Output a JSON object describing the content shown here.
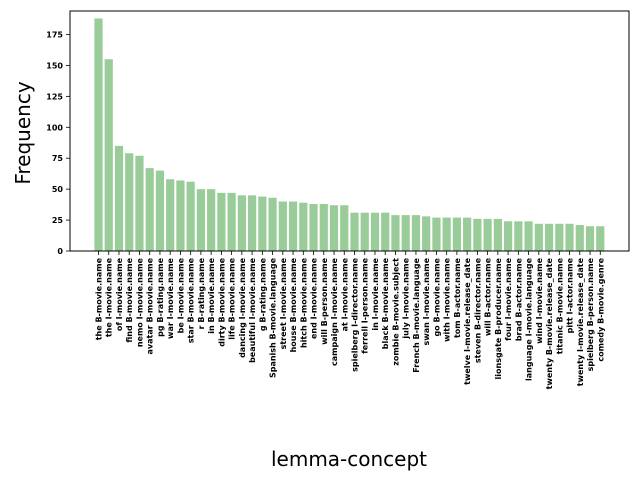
{
  "chart_data": {
    "type": "bar",
    "xlabel": "lemma-concept",
    "ylabel": "Frequency",
    "ylim": [
      0,
      194
    ],
    "yticks": [
      0,
      25,
      50,
      75,
      100,
      125,
      150,
      175
    ],
    "bar_color": "#99cc99",
    "grid": false,
    "categories": [
      "the B-movie.name",
      "the I-movie.name",
      "of I-movie.name",
      "find B-movie.name",
      "nemo I-movie.name",
      "avatar B-movie.name",
      "pg B-rating.name",
      "war I-movie.name",
      "be I-movie.name",
      "star B-movie.name",
      "r B-rating.name",
      "in B-movie.name",
      "dirty B-movie.name",
      "life B-movie.name",
      "dancing I-movie.name",
      "beautiful I-movie.name",
      "g B-rating.name",
      "Spanish B-movie.language",
      "street I-movie.name",
      "house B-movie.name",
      "hitch B-movie.name",
      "end I-movie.name",
      "will B-person.name",
      "campaign I-movie.name",
      "at I-movie.name",
      "spielberg I-director.name",
      "ferrell I-person.name",
      "in I-movie.name",
      "black B-movie.name",
      "zombie B-movie.subject",
      "july I-movie.name",
      "French B-movie.language",
      "swan I-movie.name",
      "go B-movie.name",
      "with I-movie.name",
      "tom B-actor.name",
      "twelve I-movie.release_date",
      "steven B-director.name",
      "will B-actor.name",
      "lionsgate B-producer.name",
      "four I-movie.name",
      "brad B-actor.name",
      "language I-movie.language",
      "wind I-movie.name",
      "twenty B-movie.release_date",
      "titanic B-movie.name",
      "pitt I-actor.name",
      "twenty I-movie.release_date",
      "spielberg B-person.name",
      "comedy B-movie.genre"
    ],
    "values": [
      188,
      155,
      85,
      79,
      77,
      67,
      65,
      58,
      57,
      56,
      50,
      50,
      47,
      47,
      45,
      45,
      44,
      43,
      40,
      40,
      39,
      38,
      38,
      37,
      37,
      31,
      31,
      31,
      31,
      29,
      29,
      29,
      28,
      27,
      27,
      27,
      27,
      26,
      26,
      26,
      24,
      24,
      24,
      22,
      22,
      22,
      22,
      21,
      20,
      20
    ]
  }
}
